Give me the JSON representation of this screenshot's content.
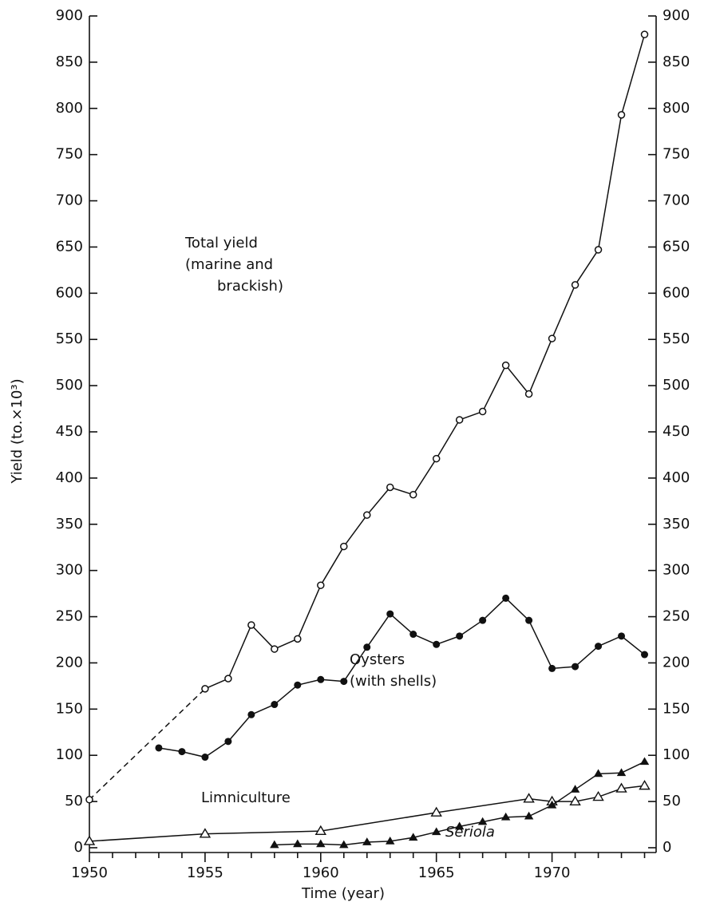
{
  "chart_data": {
    "type": "line",
    "x_label": "Time (year)",
    "y_label": "Yield (to.×10³)",
    "xlim": [
      1950,
      1974.5
    ],
    "xticks": [
      1950,
      1955,
      1960,
      1965,
      1970
    ],
    "xminorticks": [
      1951,
      1952,
      1953,
      1954,
      1956,
      1957,
      1958,
      1959,
      1961,
      1962,
      1963,
      1964,
      1966,
      1967,
      1968,
      1969,
      1971,
      1972,
      1973,
      1974
    ],
    "ylim": [
      0,
      900
    ],
    "yticks": [
      0,
      50,
      100,
      150,
      200,
      250,
      300,
      350,
      400,
      450,
      500,
      550,
      600,
      650,
      700,
      750,
      800,
      850,
      900
    ],
    "y2lim": [
      0,
      900
    ],
    "y2ticks": [
      0,
      50,
      100,
      150,
      200,
      250,
      300,
      350,
      400,
      450,
      500,
      550,
      600,
      650,
      700,
      750,
      800,
      850,
      900
    ],
    "series": [
      {
        "name": [
          "Total yield",
          "(marine and",
          "brackish)"
        ],
        "color": "#111",
        "marker": "open-circle",
        "dashed_before": 1955,
        "x": [
          1950,
          1955,
          1956,
          1957,
          1958,
          1959,
          1960,
          1961,
          1962,
          1963,
          1964,
          1965,
          1966,
          1967,
          1968,
          1969,
          1970,
          1971,
          1972,
          1973,
          1974
        ],
        "values": [
          52,
          172,
          183,
          241,
          215,
          226,
          284,
          326,
          360,
          390,
          382,
          421,
          463,
          472,
          522,
          491,
          551,
          609,
          647,
          793,
          880
        ]
      },
      {
        "name": [
          "Oysters",
          "(with shells)"
        ],
        "color": "#111",
        "marker": "filled-circle",
        "x": [
          1953,
          1954,
          1955,
          1956,
          1957,
          1958,
          1959,
          1960,
          1961,
          1962,
          1963,
          1964,
          1965,
          1966,
          1967,
          1968,
          1969,
          1970,
          1971,
          1972,
          1973,
          1974
        ],
        "values": [
          108,
          104,
          98,
          115,
          144,
          155,
          176,
          182,
          180,
          217,
          253,
          231,
          220,
          229,
          246,
          270,
          246,
          194,
          196,
          218,
          229,
          209
        ]
      },
      {
        "name": [
          "Limniculture"
        ],
        "color": "#111",
        "marker": "open-triangle",
        "x": [
          1950,
          1955,
          1960,
          1965,
          1969,
          1970,
          1971,
          1972,
          1973,
          1974
        ],
        "values": [
          7,
          15,
          18,
          38,
          53,
          50,
          50,
          55,
          64,
          67
        ]
      },
      {
        "name": [
          "Seriola"
        ],
        "color": "#111",
        "marker": "filled-triangle",
        "italic": true,
        "x": [
          1958,
          1959,
          1960,
          1961,
          1962,
          1963,
          1964,
          1965,
          1966,
          1967,
          1968,
          1969,
          1970,
          1971,
          1972,
          1973,
          1974
        ],
        "values": [
          3,
          4,
          4,
          3,
          6,
          7,
          11,
          17,
          23,
          28,
          33,
          34,
          46,
          63,
          80,
          81,
          93
        ]
      }
    ]
  }
}
